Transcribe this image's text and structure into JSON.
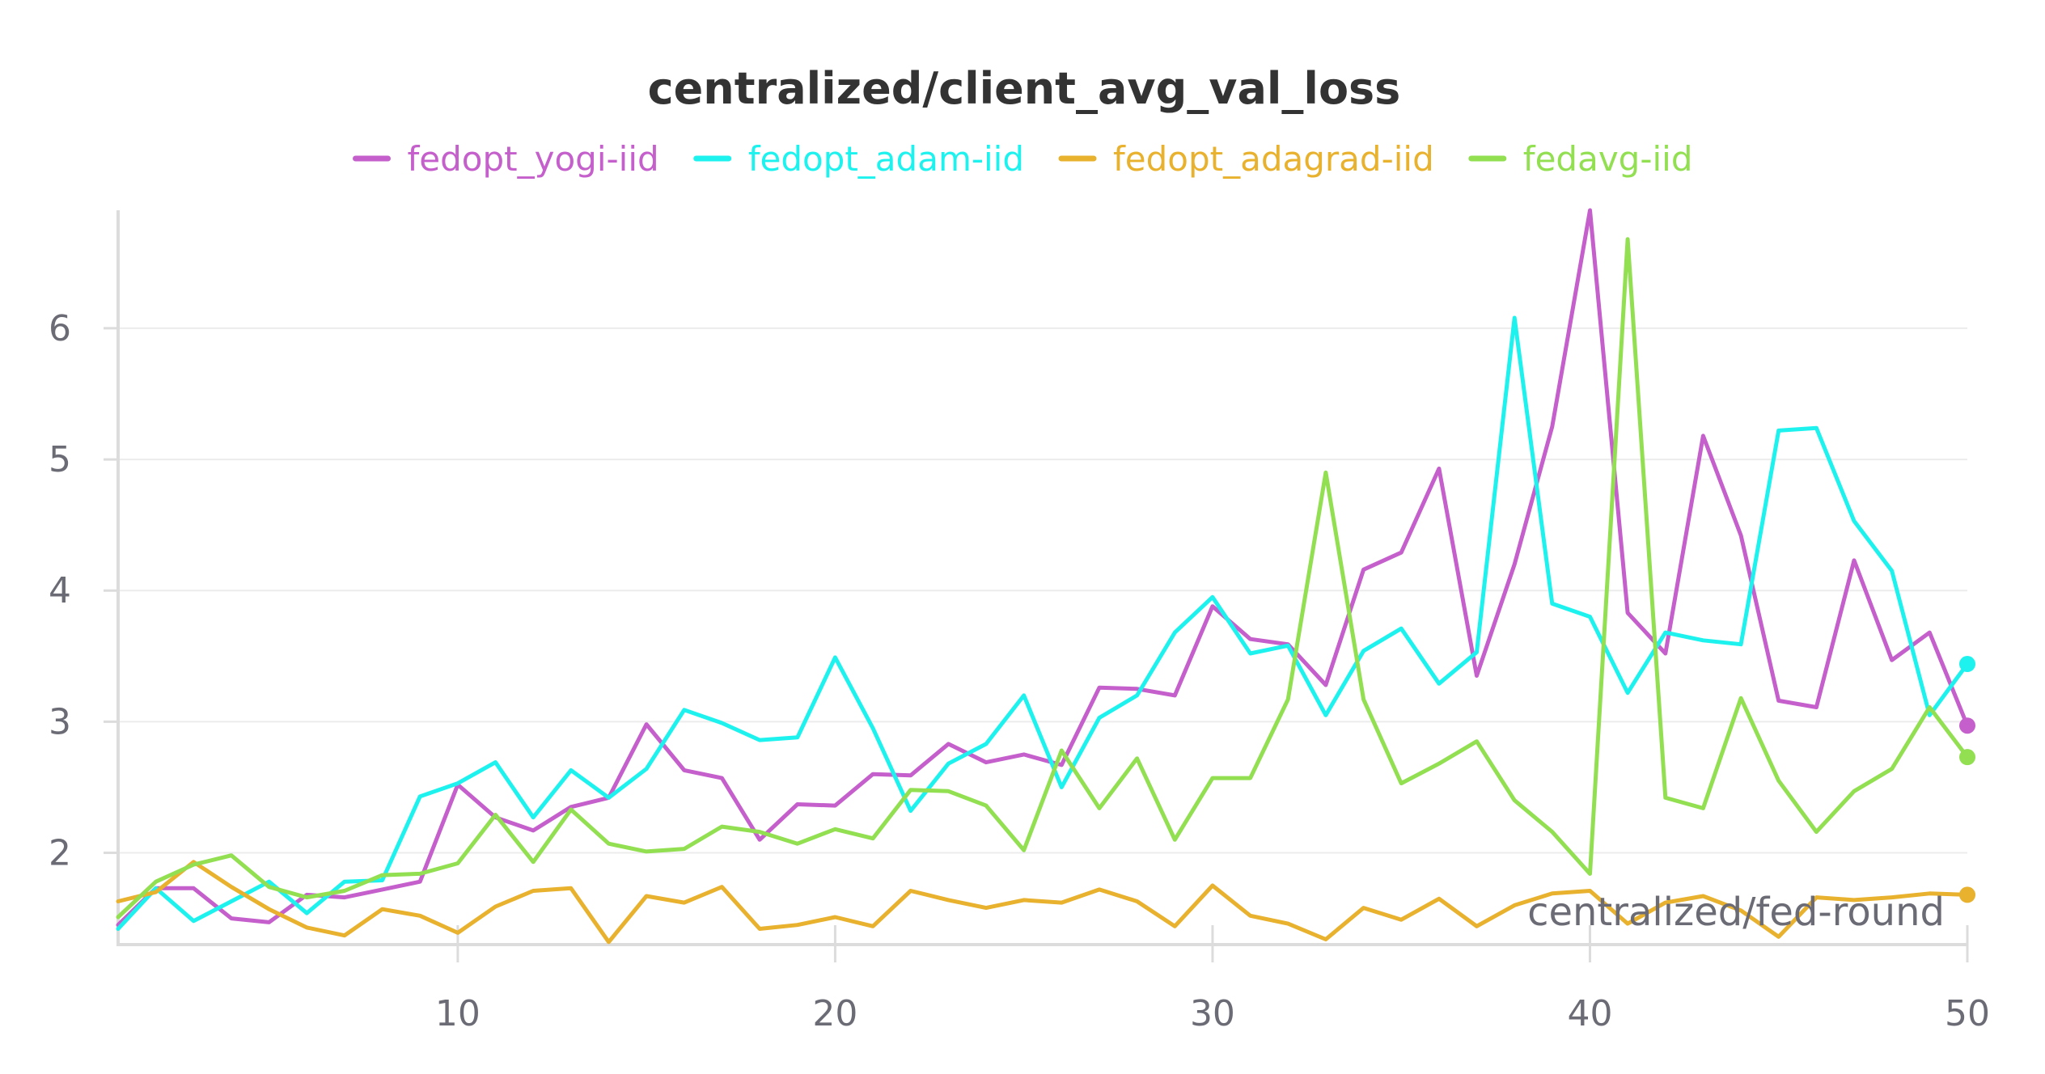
{
  "chart_data": {
    "type": "line",
    "title": "centralized/client_avg_val_loss",
    "xlabel": "centralized/fed-round",
    "ylabel": "",
    "xlim": [
      1,
      50
    ],
    "ylim": [
      1.3,
      6.9
    ],
    "xticks": [
      10,
      20,
      30,
      40,
      50
    ],
    "yticks": [
      2,
      3,
      4,
      5,
      6
    ],
    "grid": true,
    "legend_position": "top",
    "x": [
      1,
      2,
      3,
      4,
      5,
      6,
      7,
      8,
      9,
      10,
      11,
      12,
      13,
      14,
      15,
      16,
      17,
      18,
      19,
      20,
      21,
      22,
      23,
      24,
      25,
      26,
      27,
      28,
      29,
      30,
      31,
      32,
      33,
      34,
      35,
      36,
      37,
      38,
      39,
      40,
      41,
      42,
      43,
      44,
      45,
      46,
      47,
      48,
      49,
      50
    ],
    "series": [
      {
        "name": "fedopt_yogi-iid",
        "color": "#c45fcb",
        "values": [
          1.45,
          1.73,
          1.73,
          1.5,
          1.47,
          1.68,
          1.66,
          1.72,
          1.78,
          2.52,
          2.27,
          2.17,
          2.35,
          2.42,
          2.98,
          2.63,
          2.57,
          2.1,
          2.37,
          2.36,
          2.6,
          2.59,
          2.83,
          2.69,
          2.75,
          2.67,
          3.26,
          3.25,
          3.2,
          3.88,
          3.63,
          3.59,
          3.28,
          4.16,
          4.29,
          4.93,
          3.35,
          4.2,
          5.25,
          6.9,
          3.83,
          3.52,
          5.18,
          4.42,
          3.16,
          3.11,
          4.23,
          3.47,
          3.68,
          2.97
        ]
      },
      {
        "name": "fedopt_adam-iid",
        "color": "#1ef2ee",
        "values": [
          1.42,
          1.73,
          1.48,
          1.63,
          1.78,
          1.54,
          1.78,
          1.79,
          2.43,
          2.53,
          2.69,
          2.27,
          2.63,
          2.42,
          2.64,
          3.09,
          2.99,
          2.86,
          2.88,
          3.49,
          2.95,
          2.32,
          2.68,
          2.83,
          3.2,
          2.5,
          3.03,
          3.2,
          3.68,
          3.95,
          3.52,
          3.58,
          3.05,
          3.54,
          3.71,
          3.29,
          3.53,
          6.08,
          3.9,
          3.8,
          3.22,
          3.68,
          3.62,
          3.59,
          5.22,
          5.24,
          4.53,
          4.15,
          3.05,
          3.44
        ]
      },
      {
        "name": "fedopt_adagrad-iid",
        "color": "#e8b12e",
        "values": [
          1.63,
          1.7,
          1.93,
          1.74,
          1.57,
          1.43,
          1.37,
          1.57,
          1.52,
          1.39,
          1.59,
          1.71,
          1.73,
          1.32,
          1.67,
          1.62,
          1.74,
          1.42,
          1.45,
          1.51,
          1.44,
          1.71,
          1.64,
          1.58,
          1.64,
          1.62,
          1.72,
          1.63,
          1.44,
          1.75,
          1.52,
          1.46,
          1.34,
          1.58,
          1.49,
          1.65,
          1.44,
          1.6,
          1.69,
          1.71,
          1.46,
          1.62,
          1.67,
          1.56,
          1.36,
          1.66,
          1.64,
          1.66,
          1.69,
          1.68
        ]
      },
      {
        "name": "fedavg-iid",
        "color": "#92df52",
        "values": [
          1.51,
          1.78,
          1.91,
          1.98,
          1.74,
          1.66,
          1.71,
          1.83,
          1.84,
          1.92,
          2.29,
          1.93,
          2.33,
          2.07,
          2.01,
          2.03,
          2.2,
          2.16,
          2.07,
          2.18,
          2.11,
          2.48,
          2.47,
          2.36,
          2.02,
          2.78,
          2.34,
          2.72,
          2.1,
          2.57,
          2.57,
          3.17,
          4.9,
          3.17,
          2.53,
          2.68,
          2.85,
          2.4,
          2.16,
          1.84,
          6.68,
          2.42,
          2.34,
          3.18,
          2.55,
          2.16,
          2.47,
          2.64,
          3.11,
          2.73
        ]
      }
    ]
  }
}
